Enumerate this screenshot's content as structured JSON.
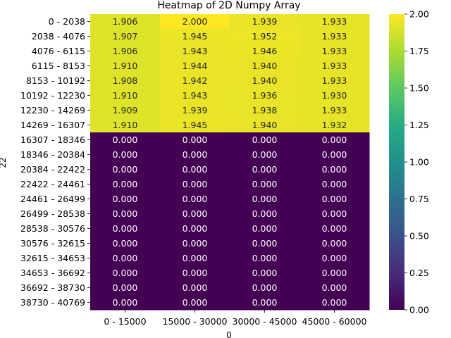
{
  "chart_data": {
    "type": "heatmap",
    "title": "Heatmap of 2D Numpy Array",
    "xlabel": "0",
    "ylabel": "22",
    "x_categories": [
      "0 - 15000",
      "15000 - 30000",
      "30000 - 45000",
      "45000 - 60000"
    ],
    "y_categories": [
      "0 - 2038",
      "2038 - 4076",
      "4076 - 6115",
      "6115 - 8153",
      "8153 - 10192",
      "10192 - 12230",
      "12230 - 14269",
      "14269 - 16307",
      "16307 - 18346",
      "18346 - 20384",
      "20384 - 22422",
      "22422 - 24461",
      "24461 - 26499",
      "26499 - 28538",
      "28538 - 30576",
      "30576 - 32615",
      "32615 - 34653",
      "34653 - 36692",
      "36692 - 38730",
      "38730 - 40769"
    ],
    "values": [
      [
        1.906,
        2.0,
        1.939,
        1.933
      ],
      [
        1.907,
        1.945,
        1.952,
        1.933
      ],
      [
        1.906,
        1.943,
        1.946,
        1.933
      ],
      [
        1.91,
        1.944,
        1.94,
        1.933
      ],
      [
        1.908,
        1.942,
        1.94,
        1.933
      ],
      [
        1.91,
        1.943,
        1.936,
        1.93
      ],
      [
        1.909,
        1.939,
        1.938,
        1.933
      ],
      [
        1.91,
        1.945,
        1.94,
        1.932
      ],
      [
        0.0,
        0.0,
        0.0,
        0.0
      ],
      [
        0.0,
        0.0,
        0.0,
        0.0
      ],
      [
        0.0,
        0.0,
        0.0,
        0.0
      ],
      [
        0.0,
        0.0,
        0.0,
        0.0
      ],
      [
        0.0,
        0.0,
        0.0,
        0.0
      ],
      [
        0.0,
        0.0,
        0.0,
        0.0
      ],
      [
        0.0,
        0.0,
        0.0,
        0.0
      ],
      [
        0.0,
        0.0,
        0.0,
        0.0
      ],
      [
        0.0,
        0.0,
        0.0,
        0.0
      ],
      [
        0.0,
        0.0,
        0.0,
        0.0
      ],
      [
        0.0,
        0.0,
        0.0,
        0.0
      ],
      [
        0.0,
        0.0,
        0.0,
        0.0
      ]
    ],
    "value_format_decimals": 3,
    "colormap": "viridis",
    "vmin": 0.0,
    "vmax": 2.0,
    "colorbar_ticks": [
      "0.00",
      "0.25",
      "0.50",
      "0.75",
      "1.00",
      "1.25",
      "1.50",
      "1.75",
      "2.00"
    ],
    "grid": false
  }
}
